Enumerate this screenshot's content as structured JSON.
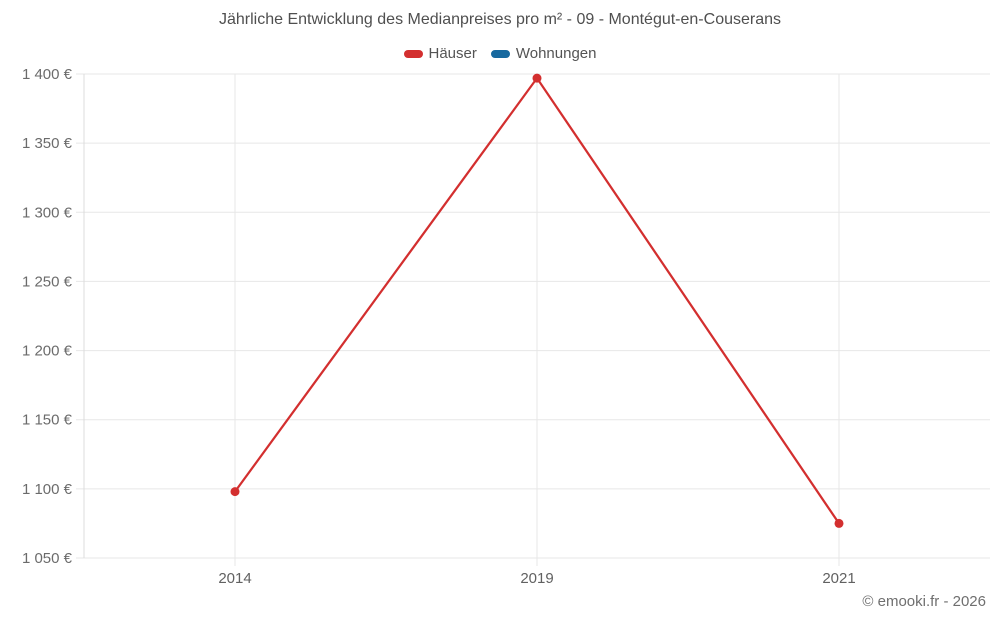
{
  "title": "Jährliche Entwicklung des Medianpreises pro m² - 09 - Montégut-en-Couserans",
  "copyright": "© emooki.fr - 2026",
  "chart_data": {
    "type": "line",
    "categories": [
      "2014",
      "2019",
      "2021"
    ],
    "series": [
      {
        "name": "Häuser",
        "color": "#d32f2f",
        "values": [
          1098,
          1397,
          1075
        ]
      },
      {
        "name": "Wohnungen",
        "color": "#17699f",
        "values": []
      }
    ],
    "title": "Jährliche Entwicklung des Medianpreises pro m² - 09 - Montégut-en-Couserans",
    "xlabel": "",
    "ylabel": "",
    "ylim": [
      1050,
      1400
    ],
    "ytick_step": 50,
    "ytick_labels": [
      "1 050 €",
      "1 100 €",
      "1 150 €",
      "1 200 €",
      "1 250 €",
      "1 300 €",
      "1 350 €",
      "1 400 €"
    ],
    "grid": true,
    "legend_position": "top"
  }
}
